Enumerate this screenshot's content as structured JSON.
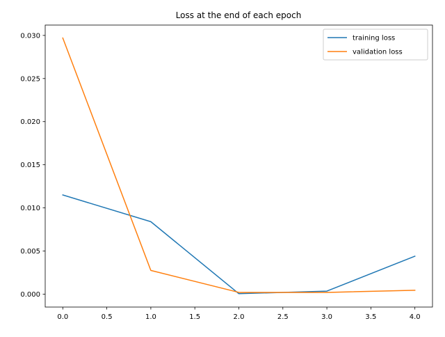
{
  "chart_data": {
    "type": "line",
    "title": "Loss at the end of each epoch",
    "xlabel": "",
    "ylabel": "",
    "xlim": [
      -0.2,
      4.2
    ],
    "ylim": [
      -0.0015,
      0.0312
    ],
    "x_ticks": [
      0.0,
      0.5,
      1.0,
      1.5,
      2.0,
      2.5,
      3.0,
      3.5,
      4.0
    ],
    "x_tick_labels": [
      "0.0",
      "0.5",
      "1.0",
      "1.5",
      "2.0",
      "2.5",
      "3.0",
      "3.5",
      "4.0"
    ],
    "y_ticks": [
      0.0,
      0.005,
      0.01,
      0.015,
      0.02,
      0.025,
      0.03
    ],
    "y_tick_labels": [
      "0.000",
      "0.005",
      "0.010",
      "0.015",
      "0.020",
      "0.025",
      "0.030"
    ],
    "grid": false,
    "legend_position": "top-right",
    "x": [
      0,
      1,
      2,
      3,
      4
    ],
    "series": [
      {
        "name": "training loss",
        "color": "#1f77b4",
        "values": [
          0.0115,
          0.0084,
          5e-05,
          0.00035,
          0.0044
        ]
      },
      {
        "name": "validation loss",
        "color": "#ff7f0e",
        "values": [
          0.0297,
          0.00275,
          0.0002,
          0.0002,
          0.00045
        ]
      }
    ]
  }
}
